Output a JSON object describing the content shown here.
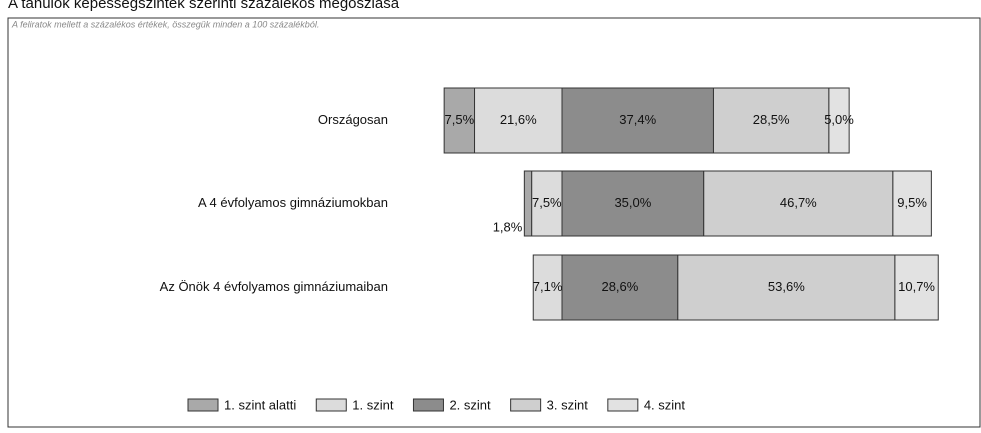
{
  "chart_data": {
    "type": "bar",
    "orientation": "horizontal",
    "stacked": true,
    "title": "A tanulók képességszintek szerinti százalékos megoszlása",
    "subtitle": "A feliratok mellett a százalékos értékek, összegük minden a 100 százalékból.",
    "categories": [
      "Országosan",
      "A 4 évfolyamos gimnáziumokban",
      "Az Önök 4 évfolyamos gimnáziumaiban"
    ],
    "series": [
      {
        "name": "1. szint alatti",
        "color": "#a9a9a9",
        "values": [
          7.5,
          1.8,
          null
        ],
        "value_labels": [
          "7,5%",
          "1,8%",
          null
        ]
      },
      {
        "name": "1. szint",
        "color": "#dcdcdc",
        "values": [
          21.6,
          7.5,
          7.1
        ],
        "value_labels": [
          "21,6%",
          "7,5%",
          "7,1%"
        ]
      },
      {
        "name": "2. szint",
        "color": "#8c8c8c",
        "values": [
          37.4,
          35.0,
          28.6
        ],
        "value_labels": [
          "37,4%",
          "35,0%",
          "28,6%"
        ]
      },
      {
        "name": "3. szint",
        "color": "#cfcfcf",
        "values": [
          28.5,
          46.7,
          53.6
        ],
        "value_labels": [
          "28,5%",
          "46,7%",
          "53,6%"
        ]
      },
      {
        "name": "4. szint",
        "color": "#e2e2e2",
        "values": [
          5.0,
          9.5,
          10.7
        ],
        "value_labels": [
          "5,0%",
          "9,5%",
          "10,7%"
        ]
      }
    ],
    "legend": "bottom"
  }
}
